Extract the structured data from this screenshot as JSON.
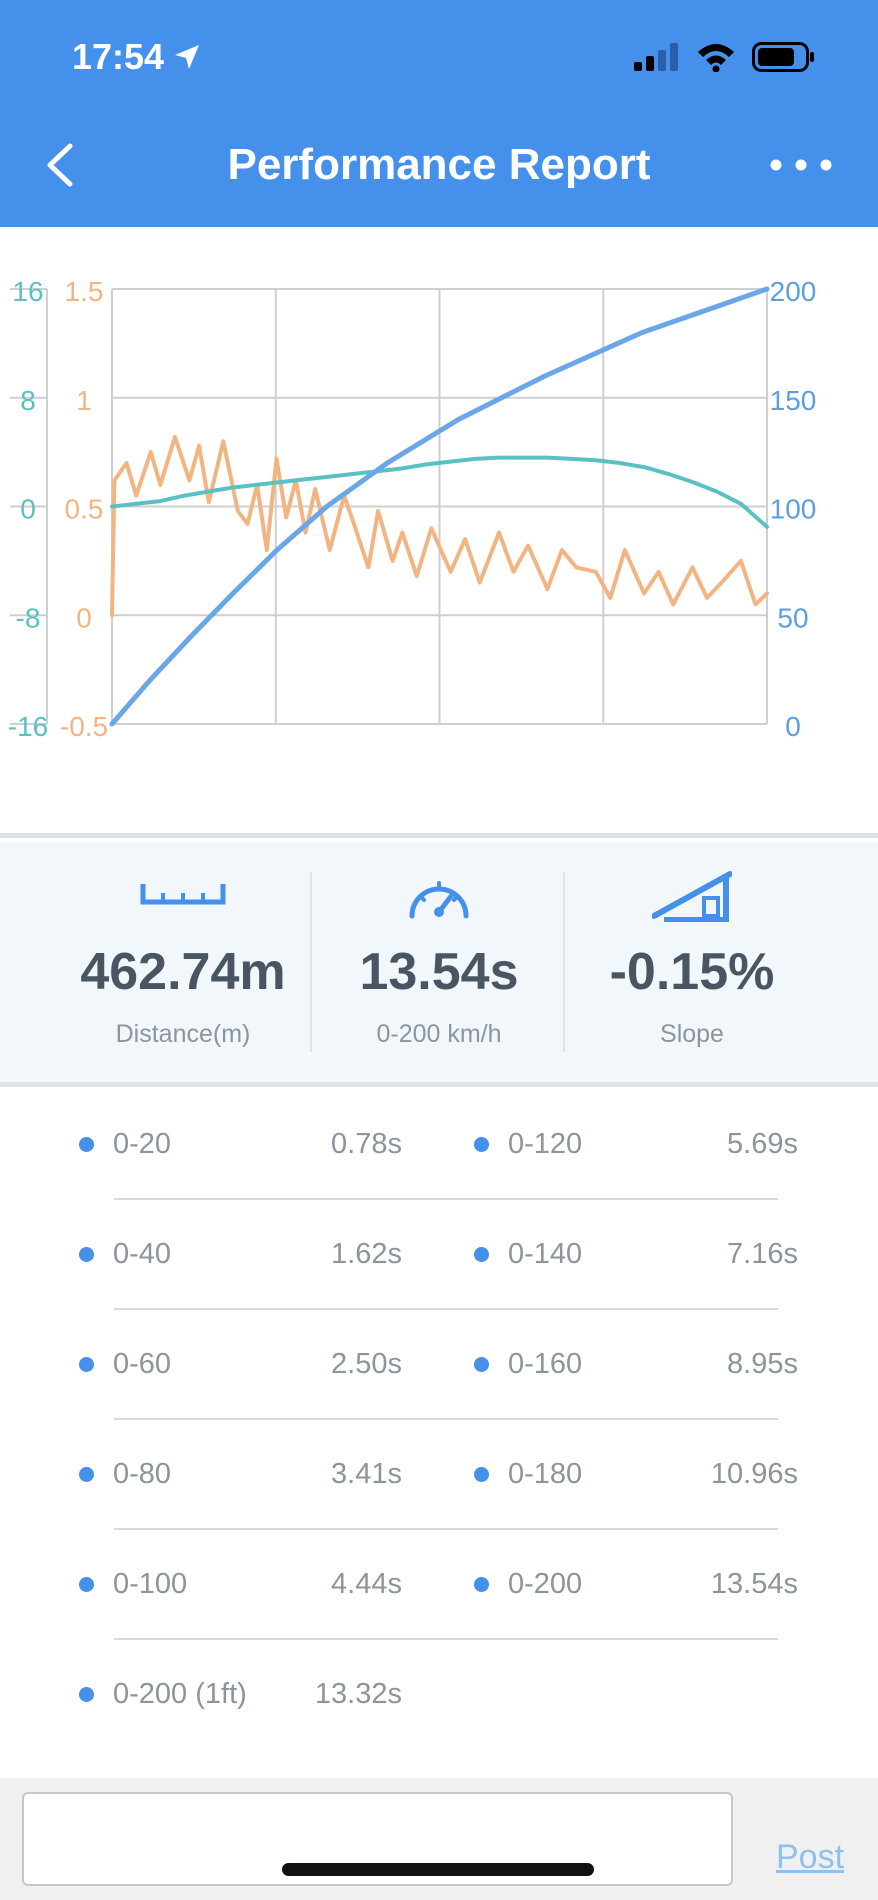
{
  "status_bar": {
    "time": "17:54"
  },
  "header": {
    "title": "Performance Report"
  },
  "chart_data": {
    "type": "line",
    "axes": {
      "left_outer": {
        "ticks": [
          "16",
          "8",
          "0",
          "-8",
          "-16"
        ],
        "range": [
          -16,
          16
        ],
        "color": "#5BC0C4"
      },
      "left_inner": {
        "ticks": [
          "1.5",
          "1",
          "0.5",
          "0",
          "-0.5"
        ],
        "range": [
          -0.5,
          1.5
        ],
        "color": "#F2B582"
      },
      "right": {
        "ticks": [
          "200",
          "150",
          "100",
          "50",
          "0"
        ],
        "range": [
          0,
          200
        ],
        "color": "#5B9FE0"
      },
      "x_range": [
        0,
        13.54
      ]
    },
    "grid": true,
    "series": [
      {
        "axis": "right",
        "color": "#6AA6E8",
        "x": [
          0,
          0.78,
          1.62,
          2.5,
          3.41,
          4.44,
          5.69,
          7.16,
          8.95,
          10.96,
          13.54
        ],
        "y": [
          0,
          20,
          40,
          60,
          80,
          100,
          120,
          140,
          160,
          180,
          200
        ]
      },
      {
        "axis": "left_outer",
        "color": "#5BC0C4",
        "x": [
          0,
          0.5,
          1,
          1.5,
          2,
          2.5,
          3,
          3.5,
          4,
          4.5,
          5,
          5.5,
          6,
          6.5,
          7,
          7.5,
          8,
          8.5,
          9,
          9.5,
          10,
          10.5,
          11,
          11.5,
          12,
          12.5,
          13,
          13.54
        ],
        "y": [
          0,
          0.2,
          0.4,
          0.8,
          1.1,
          1.4,
          1.6,
          1.8,
          2.0,
          2.2,
          2.4,
          2.6,
          2.8,
          3.1,
          3.3,
          3.5,
          3.6,
          3.6,
          3.6,
          3.5,
          3.4,
          3.2,
          2.9,
          2.4,
          1.8,
          1.1,
          0.2,
          -1.5
        ]
      },
      {
        "axis": "left_inner",
        "color": "#F2B582",
        "x": [
          0,
          0.05,
          0.3,
          0.5,
          0.8,
          1.0,
          1.3,
          1.6,
          1.8,
          2.0,
          2.3,
          2.6,
          2.8,
          3.0,
          3.2,
          3.4,
          3.6,
          3.8,
          4.0,
          4.2,
          4.5,
          4.8,
          5.0,
          5.3,
          5.5,
          5.8,
          6.0,
          6.3,
          6.6,
          7.0,
          7.3,
          7.6,
          8.0,
          8.3,
          8.6,
          9.0,
          9.3,
          9.6,
          10.0,
          10.3,
          10.6,
          11.0,
          11.3,
          11.6,
          12.0,
          12.3,
          12.6,
          13.0,
          13.3,
          13.54
        ],
        "y": [
          0,
          0.62,
          0.7,
          0.55,
          0.75,
          0.6,
          0.82,
          0.62,
          0.78,
          0.52,
          0.8,
          0.48,
          0.42,
          0.6,
          0.3,
          0.72,
          0.45,
          0.62,
          0.38,
          0.58,
          0.3,
          0.55,
          0.42,
          0.22,
          0.48,
          0.25,
          0.38,
          0.18,
          0.4,
          0.2,
          0.35,
          0.15,
          0.38,
          0.2,
          0.32,
          0.12,
          0.3,
          0.22,
          0.2,
          0.08,
          0.3,
          0.1,
          0.2,
          0.05,
          0.22,
          0.08,
          0.15,
          0.25,
          0.05,
          0.1
        ]
      }
    ]
  },
  "stats": [
    {
      "icon": "ruler-icon",
      "value": "462.74m",
      "label": "Distance(m)"
    },
    {
      "icon": "speedometer-icon",
      "value": "13.54s",
      "label": "0-200 km/h"
    },
    {
      "icon": "slope-icon",
      "value": "-0.15%",
      "label": "Slope"
    }
  ],
  "splits": [
    {
      "left": {
        "label": "0-20",
        "time": "0.78s"
      },
      "right": {
        "label": "0-120",
        "time": "5.69s"
      }
    },
    {
      "left": {
        "label": "0-40",
        "time": "1.62s"
      },
      "right": {
        "label": "0-140",
        "time": "7.16s"
      }
    },
    {
      "left": {
        "label": "0-60",
        "time": "2.50s"
      },
      "right": {
        "label": "0-160",
        "time": "8.95s"
      }
    },
    {
      "left": {
        "label": "0-80",
        "time": "3.41s"
      },
      "right": {
        "label": "0-180",
        "time": "10.96s"
      }
    },
    {
      "left": {
        "label": "0-100",
        "time": "4.44s"
      },
      "right": {
        "label": "0-200",
        "time": "13.54s"
      }
    },
    {
      "left": {
        "label": "0-200 (1ft)",
        "time": "13.32s"
      }
    }
  ],
  "footer": {
    "comment_placeholder": "",
    "post_label": "Post"
  },
  "colors": {
    "header_bg": "#4590EA",
    "accent": "#4590EA",
    "stats_bg": "#F2F7FB"
  }
}
